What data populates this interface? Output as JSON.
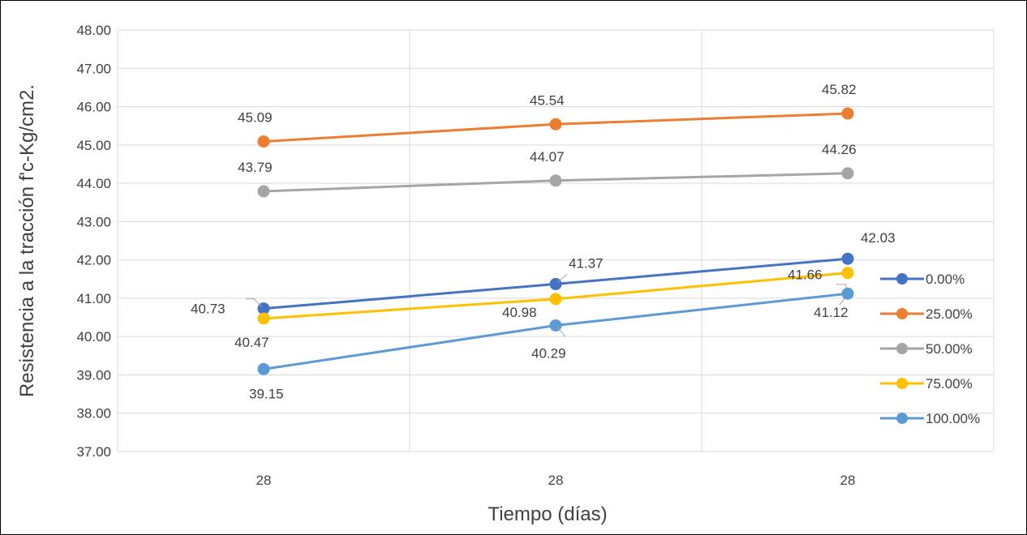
{
  "chart_data": {
    "type": "line",
    "title": "",
    "xlabel": "Tiempo (días)",
    "ylabel": "Resistencia a la tracción f'c-Kg/cm2.",
    "categories": [
      "28",
      "28",
      "28"
    ],
    "ylim": [
      37,
      48
    ],
    "y_tick_step": 1,
    "y_tick_format": "2-decimals",
    "grid": true,
    "legend_position": "right",
    "series": [
      {
        "name": "0.00%",
        "color": "#4472C4",
        "values": [
          40.73,
          41.37,
          42.03
        ]
      },
      {
        "name": "25.00%",
        "color": "#ED7D31",
        "values": [
          45.09,
          45.54,
          45.82
        ]
      },
      {
        "name": "50.00%",
        "color": "#A5A5A5",
        "values": [
          43.79,
          44.07,
          44.26
        ]
      },
      {
        "name": "75.00%",
        "color": "#FFC000",
        "values": [
          40.47,
          40.98,
          41.66
        ]
      },
      {
        "name": "100.00%",
        "color": "#5B9BD5",
        "values": [
          39.15,
          40.29,
          41.12
        ]
      }
    ],
    "data_labels": [
      [
        "40.73",
        "41.37",
        "42.03"
      ],
      [
        "45.09",
        "45.54",
        "45.82"
      ],
      [
        "43.79",
        "44.07",
        "44.26"
      ],
      [
        "40.47",
        "40.98",
        "41.66"
      ],
      [
        "39.15",
        "40.29",
        "41.12"
      ]
    ]
  }
}
